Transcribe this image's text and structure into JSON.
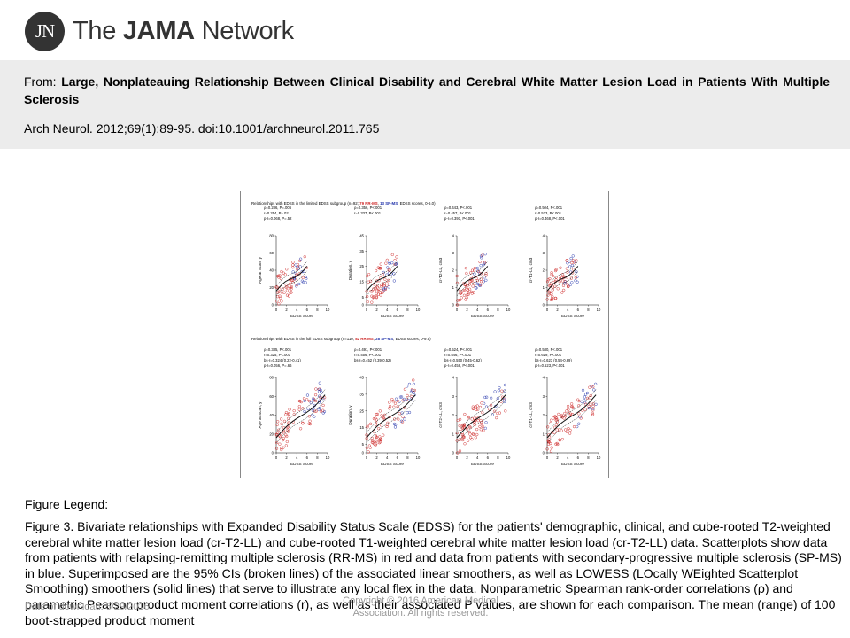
{
  "header": {
    "logo_mark": "JN",
    "logo_prefix": "The ",
    "logo_bold": "JAMA",
    "logo_suffix": " Network"
  },
  "citation": {
    "from_label": "From: ",
    "article_title": "Large, Nonplateauing Relationship Between Clinical Disability and Cerebral White Matter Lesion Load in Patients With Multiple Sclerosis",
    "reference": "Arch Neurol. 2012;69(1):89-95. doi:10.1001/archneurol.2011.765"
  },
  "figure": {
    "row1_header_prefix": "Relationships with EDSS in the limited EDSS subgroup (n=92; ",
    "row1_header_rr": "79 RR-MS",
    "row1_header_sp": "13 SP-MS",
    "row1_header_suffix": "; EDSS scores, 0-6.0)",
    "row2_header_prefix": "Relationships with EDSS in the full EDSS subgroup (n=110; ",
    "row2_header_rr": "82 RR-MS",
    "row2_header_sp": "28 SP-MS",
    "row2_header_suffix": "; EDSS scores, 0-9.5)",
    "x_label": "EDSS Score",
    "colors": {
      "rr": "#cc2222",
      "sp": "#2233aa",
      "smoother": "#111111"
    }
  },
  "chart_data": [
    {
      "type": "scatter",
      "row": "limited",
      "ylabel": "Age at Scan, y",
      "ylim": [
        0,
        80
      ],
      "yticks": [
        "0",
        "20",
        "40",
        "60",
        "80"
      ],
      "xticks": [
        "0",
        "2",
        "4",
        "6",
        "8",
        "10"
      ],
      "stats": [
        "ρ=0.286, P=.006",
        "r=0.254, P=.02",
        "p-r=0.068, P=.52"
      ]
    },
    {
      "type": "scatter",
      "row": "limited",
      "ylabel": "Duration, y",
      "ylim": [
        0,
        45
      ],
      "yticks": [
        "0",
        "5",
        "15",
        "25",
        "35",
        "45"
      ],
      "xticks": [
        "0",
        "2",
        "4",
        "6",
        "8",
        "10"
      ],
      "stats": [
        "ρ=0.356, P<.001",
        "r=0.337, P<.001"
      ]
    },
    {
      "type": "scatter",
      "row": "limited",
      "ylabel": "cr-T2-LL, cm3",
      "ylim": [
        0,
        4
      ],
      "yticks": [
        "0",
        "1",
        "2",
        "3",
        "4"
      ],
      "xticks": [
        "0",
        "2",
        "4",
        "6",
        "8",
        "10"
      ],
      "stats": [
        "ρ=0.443, P<.001",
        "r=0.457, P<.001",
        "p-r=0.391, P<.001"
      ]
    },
    {
      "type": "scatter",
      "row": "limited",
      "ylabel": "cr-T1-LL, cm3",
      "ylim": [
        0,
        4
      ],
      "yticks": [
        "0",
        "1",
        "2",
        "3",
        "4"
      ],
      "xticks": [
        "0",
        "2",
        "4",
        "6",
        "8",
        "10"
      ],
      "stats": [
        "ρ=0.504, P<.001",
        "r=0.523, P<.001",
        "p-r=0.468, P<.001"
      ]
    },
    {
      "type": "scatter",
      "row": "full",
      "ylabel": "Age at Scan, y",
      "ylim": [
        0,
        80
      ],
      "yticks": [
        "0",
        "20",
        "40",
        "60",
        "80"
      ],
      "xticks": [
        "0",
        "2",
        "4",
        "6",
        "8",
        "10"
      ],
      "stats": [
        "ρ=0.335, P<.001",
        "r=0.325, P<.001",
        "bs-r=0.324 (0.22-0.41)",
        "p-r=0.056, P=.66"
      ]
    },
    {
      "type": "scatter",
      "row": "full",
      "ylabel": "Duration, y",
      "ylim": [
        0,
        45
      ],
      "yticks": [
        "0",
        "5",
        "15",
        "25",
        "35",
        "45"
      ],
      "xticks": [
        "0",
        "2",
        "4",
        "6",
        "8",
        "10"
      ],
      "stats": [
        "ρ=0.491, P<.001",
        "r=0.456, P<.001",
        "bs-r=0.452 (0.39-0.52)"
      ]
    },
    {
      "type": "scatter",
      "row": "full",
      "ylabel": "cr-T2-LL, cm3",
      "ylim": [
        0,
        4
      ],
      "yticks": [
        "0",
        "1",
        "2",
        "3",
        "4"
      ],
      "xticks": [
        "0",
        "2",
        "4",
        "6",
        "8",
        "10"
      ],
      "stats": [
        "ρ=0.524, P<.001",
        "r=0.546, P<.001",
        "bs-r=0.550 (0.45-0.62)",
        "p-r=0.458, P<.001"
      ]
    },
    {
      "type": "scatter",
      "row": "full",
      "ylabel": "cr-T1-LL, cm3",
      "ylim": [
        0,
        4
      ],
      "yticks": [
        "0",
        "1",
        "2",
        "3",
        "4"
      ],
      "xticks": [
        "0",
        "2",
        "4",
        "6",
        "8",
        "10"
      ],
      "stats": [
        "ρ=0.580, P<.001",
        "r=0.619, P<.001",
        "bs-r=0.623 (0.54-0.69)",
        "p-r=0.523, P<.001"
      ]
    }
  ],
  "legend": {
    "heading": "Figure Legend:",
    "text": "Figure 3. Bivariate relationships with Expanded Disability Status Scale (EDSS) for the patients' demographic, clinical, and cube-rooted T2-weighted cerebral white matter lesion load (cr-T2-LL) and cube-rooted T1-weighted cerebral white matter lesion load (cr-T2-LL) data. Scatterplots show data from patients with relapsing-remitting multiple sclerosis (RR-MS) in red and data from patients with secondary-progressive multiple sclerosis (SP-MS) in blue. Superimposed are the 95% CIs (broken lines) of the associated linear smoothers, as well as LOWESS (LOcally WEighted Scatterplot Smoothing) smoothers (solid lines) that serve to illustrate any local flex in the data. Nonparametric Spearman rank-order correlations (ρ) and parametric Pearson product moment correlations (r), as well as their associated P values, are shown for each comparison. The mean (range) of 100 boot-strapped product moment"
  },
  "footer": {
    "date": "Date of download:  5/29/2016",
    "copyright": "Copyright © 2016 American Medical Association. All rights reserved."
  }
}
